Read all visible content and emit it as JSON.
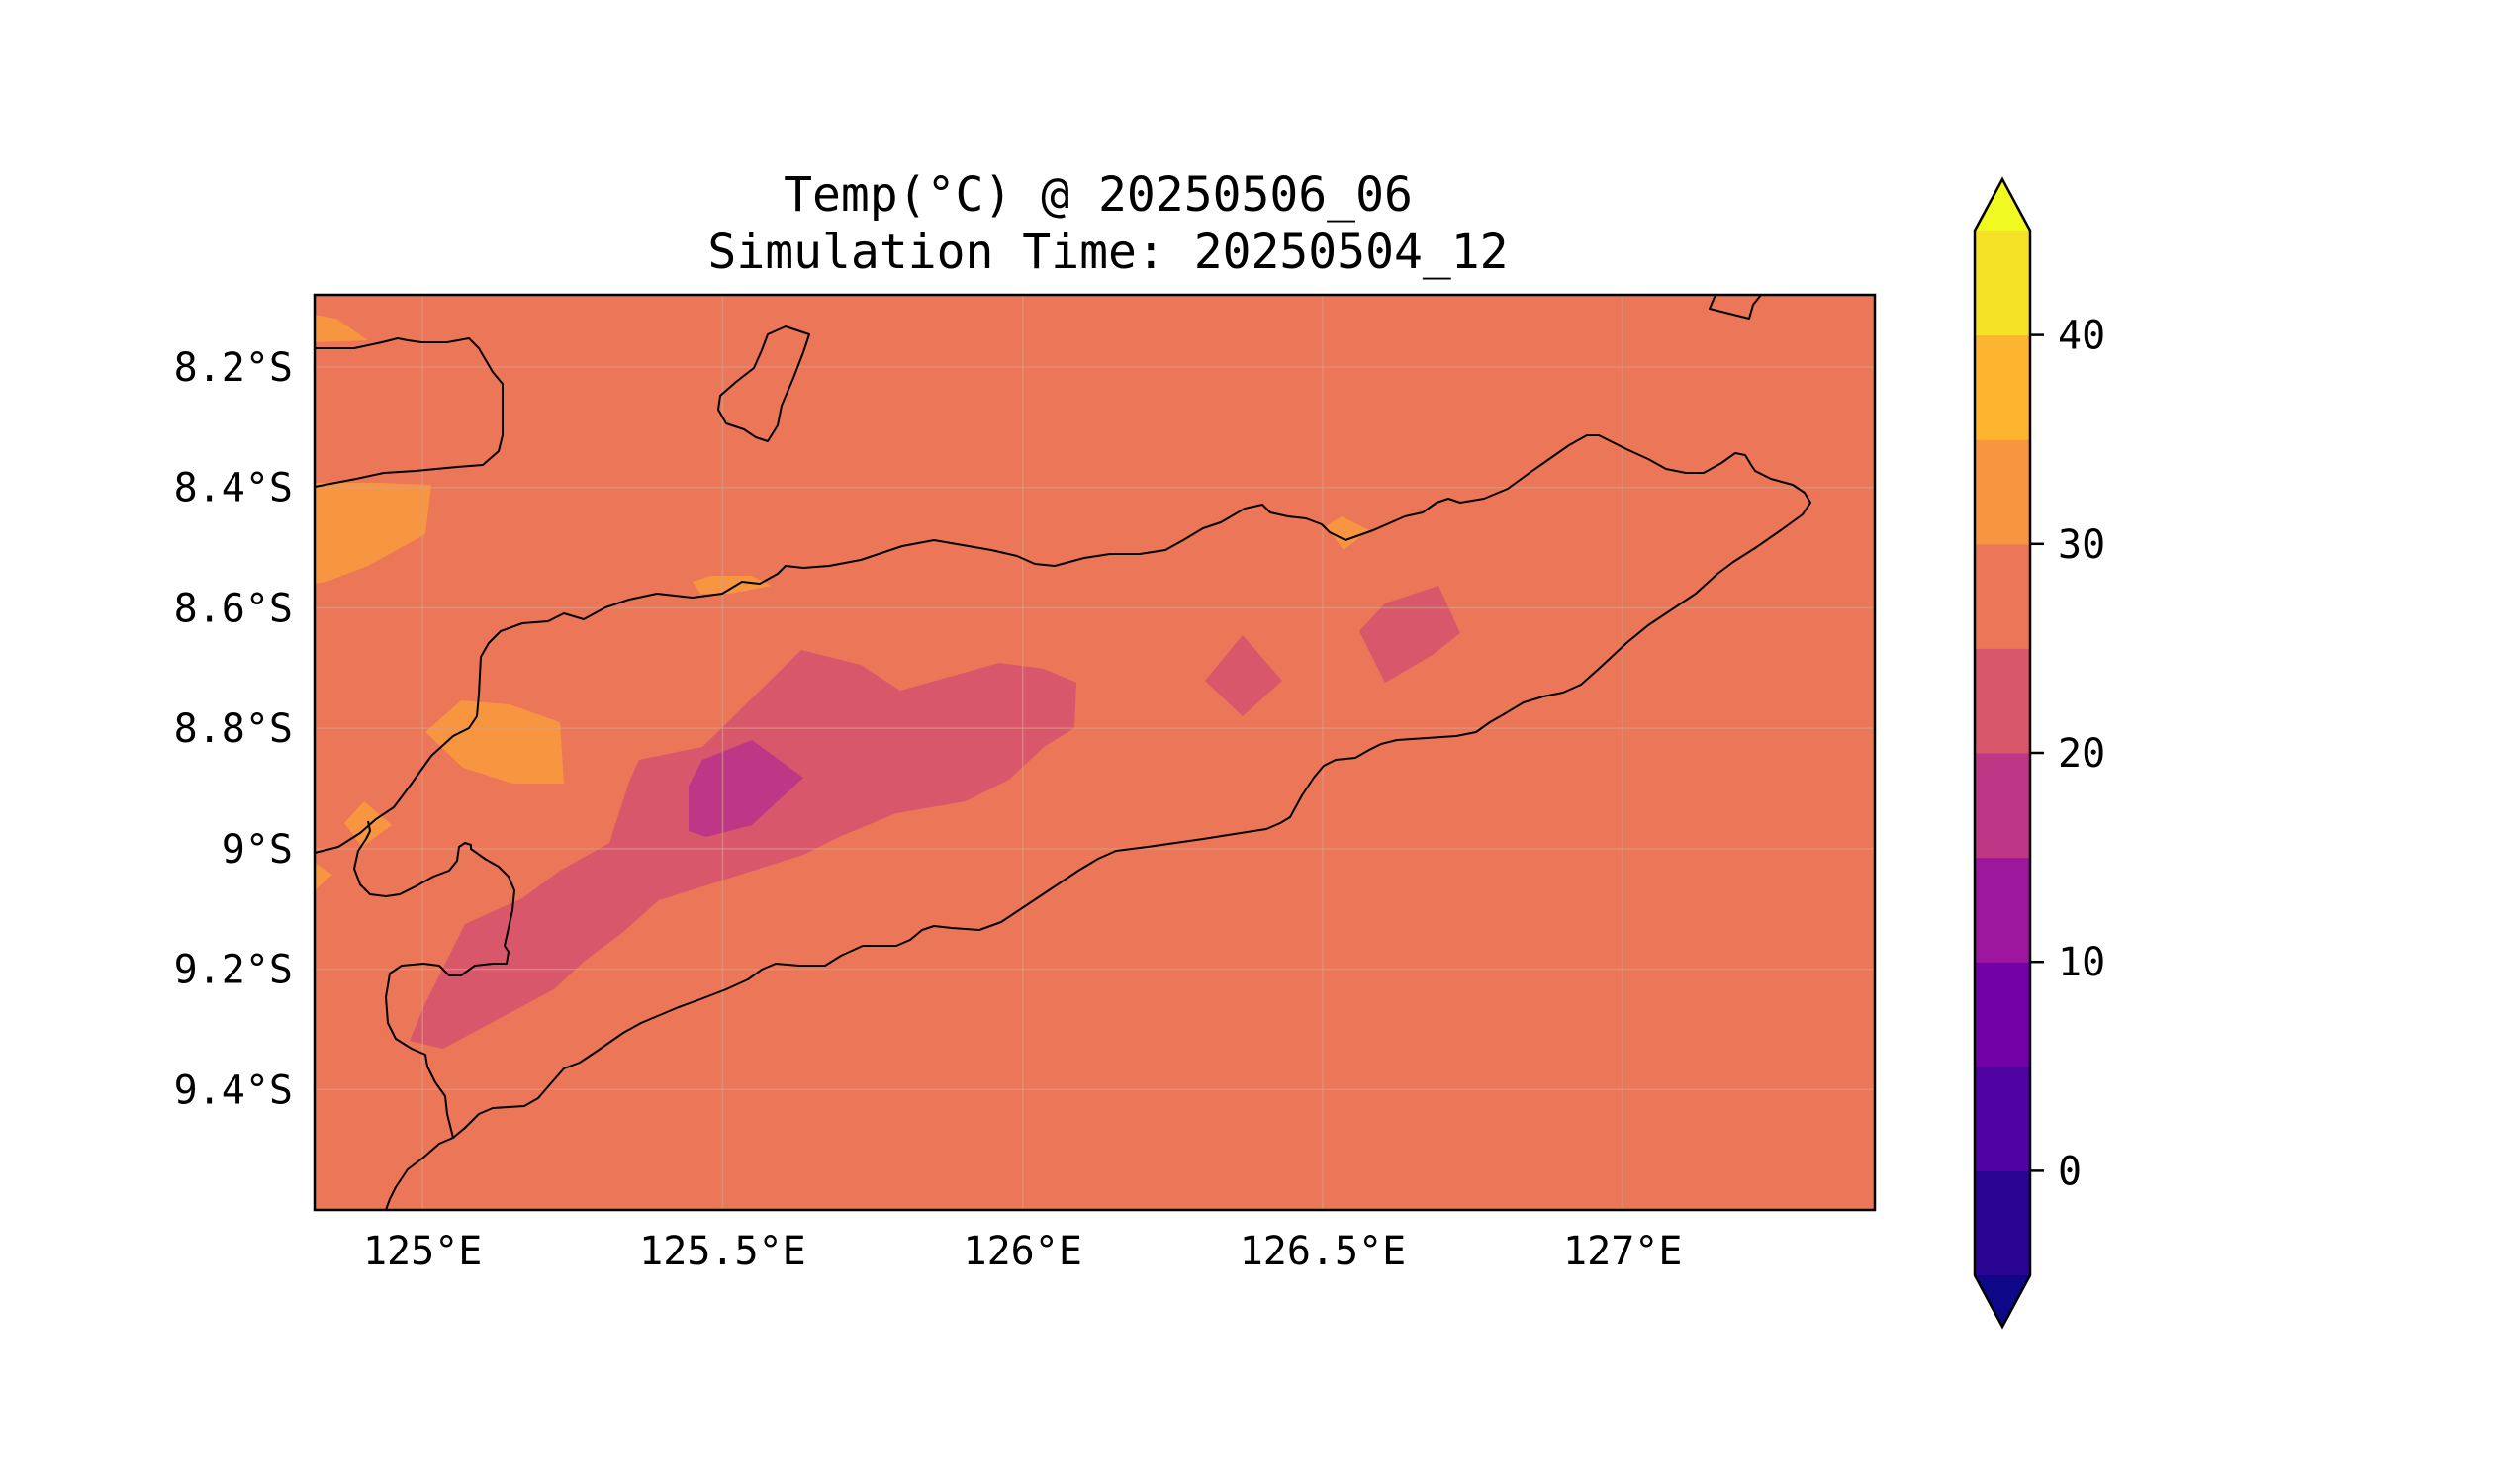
{
  "title": {
    "line1": "Temp(°C) @ 20250506_06",
    "line2": "Simulation Time: 20250504_12"
  },
  "map": {
    "extent": {
      "lon_min": 124.82,
      "lon_max": 127.42,
      "lat_min": -9.6,
      "lat_max": -8.08
    },
    "lon_ticks": [
      {
        "value": 125.0,
        "label": "125°E"
      },
      {
        "value": 125.5,
        "label": "125.5°E"
      },
      {
        "value": 126.0,
        "label": "126°E"
      },
      {
        "value": 126.5,
        "label": "126.5°E"
      },
      {
        "value": 127.0,
        "label": "127°E"
      }
    ],
    "lat_ticks": [
      {
        "value": -8.2,
        "label": "8.2°S"
      },
      {
        "value": -8.4,
        "label": "8.4°S"
      },
      {
        "value": -8.6,
        "label": "8.6°S"
      },
      {
        "value": -8.8,
        "label": "8.8°S"
      },
      {
        "value": -9.0,
        "label": "9°S"
      },
      {
        "value": -9.2,
        "label": "9.2°S"
      },
      {
        "value": -9.4,
        "label": "9.4°S"
      }
    ],
    "gridlines": true,
    "background_level_color": "#eb7658"
  },
  "colorbar": {
    "extend": "both",
    "under_color": "#0d0887",
    "over_color": "#f0f921",
    "levels": [
      {
        "from": -5,
        "to": 0,
        "color": "#2a0593"
      },
      {
        "from": 0,
        "to": 5,
        "color": "#5102a3"
      },
      {
        "from": 5,
        "to": 10,
        "color": "#7201a8"
      },
      {
        "from": 10,
        "to": 15,
        "color": "#9c179e"
      },
      {
        "from": 15,
        "to": 20,
        "color": "#bd3786"
      },
      {
        "from": 20,
        "to": 25,
        "color": "#d8576b"
      },
      {
        "from": 25,
        "to": 30,
        "color": "#eb7658"
      },
      {
        "from": 30,
        "to": 35,
        "color": "#f89540"
      },
      {
        "from": 35,
        "to": 40,
        "color": "#fdb42f"
      },
      {
        "from": 40,
        "to": 45,
        "color": "#f5e125"
      }
    ],
    "ticks": [
      {
        "value": 0,
        "label": "0"
      },
      {
        "value": 10,
        "label": "10"
      },
      {
        "value": 20,
        "label": "20"
      },
      {
        "value": 30,
        "label": "30"
      },
      {
        "value": 40,
        "label": "40"
      }
    ]
  }
}
